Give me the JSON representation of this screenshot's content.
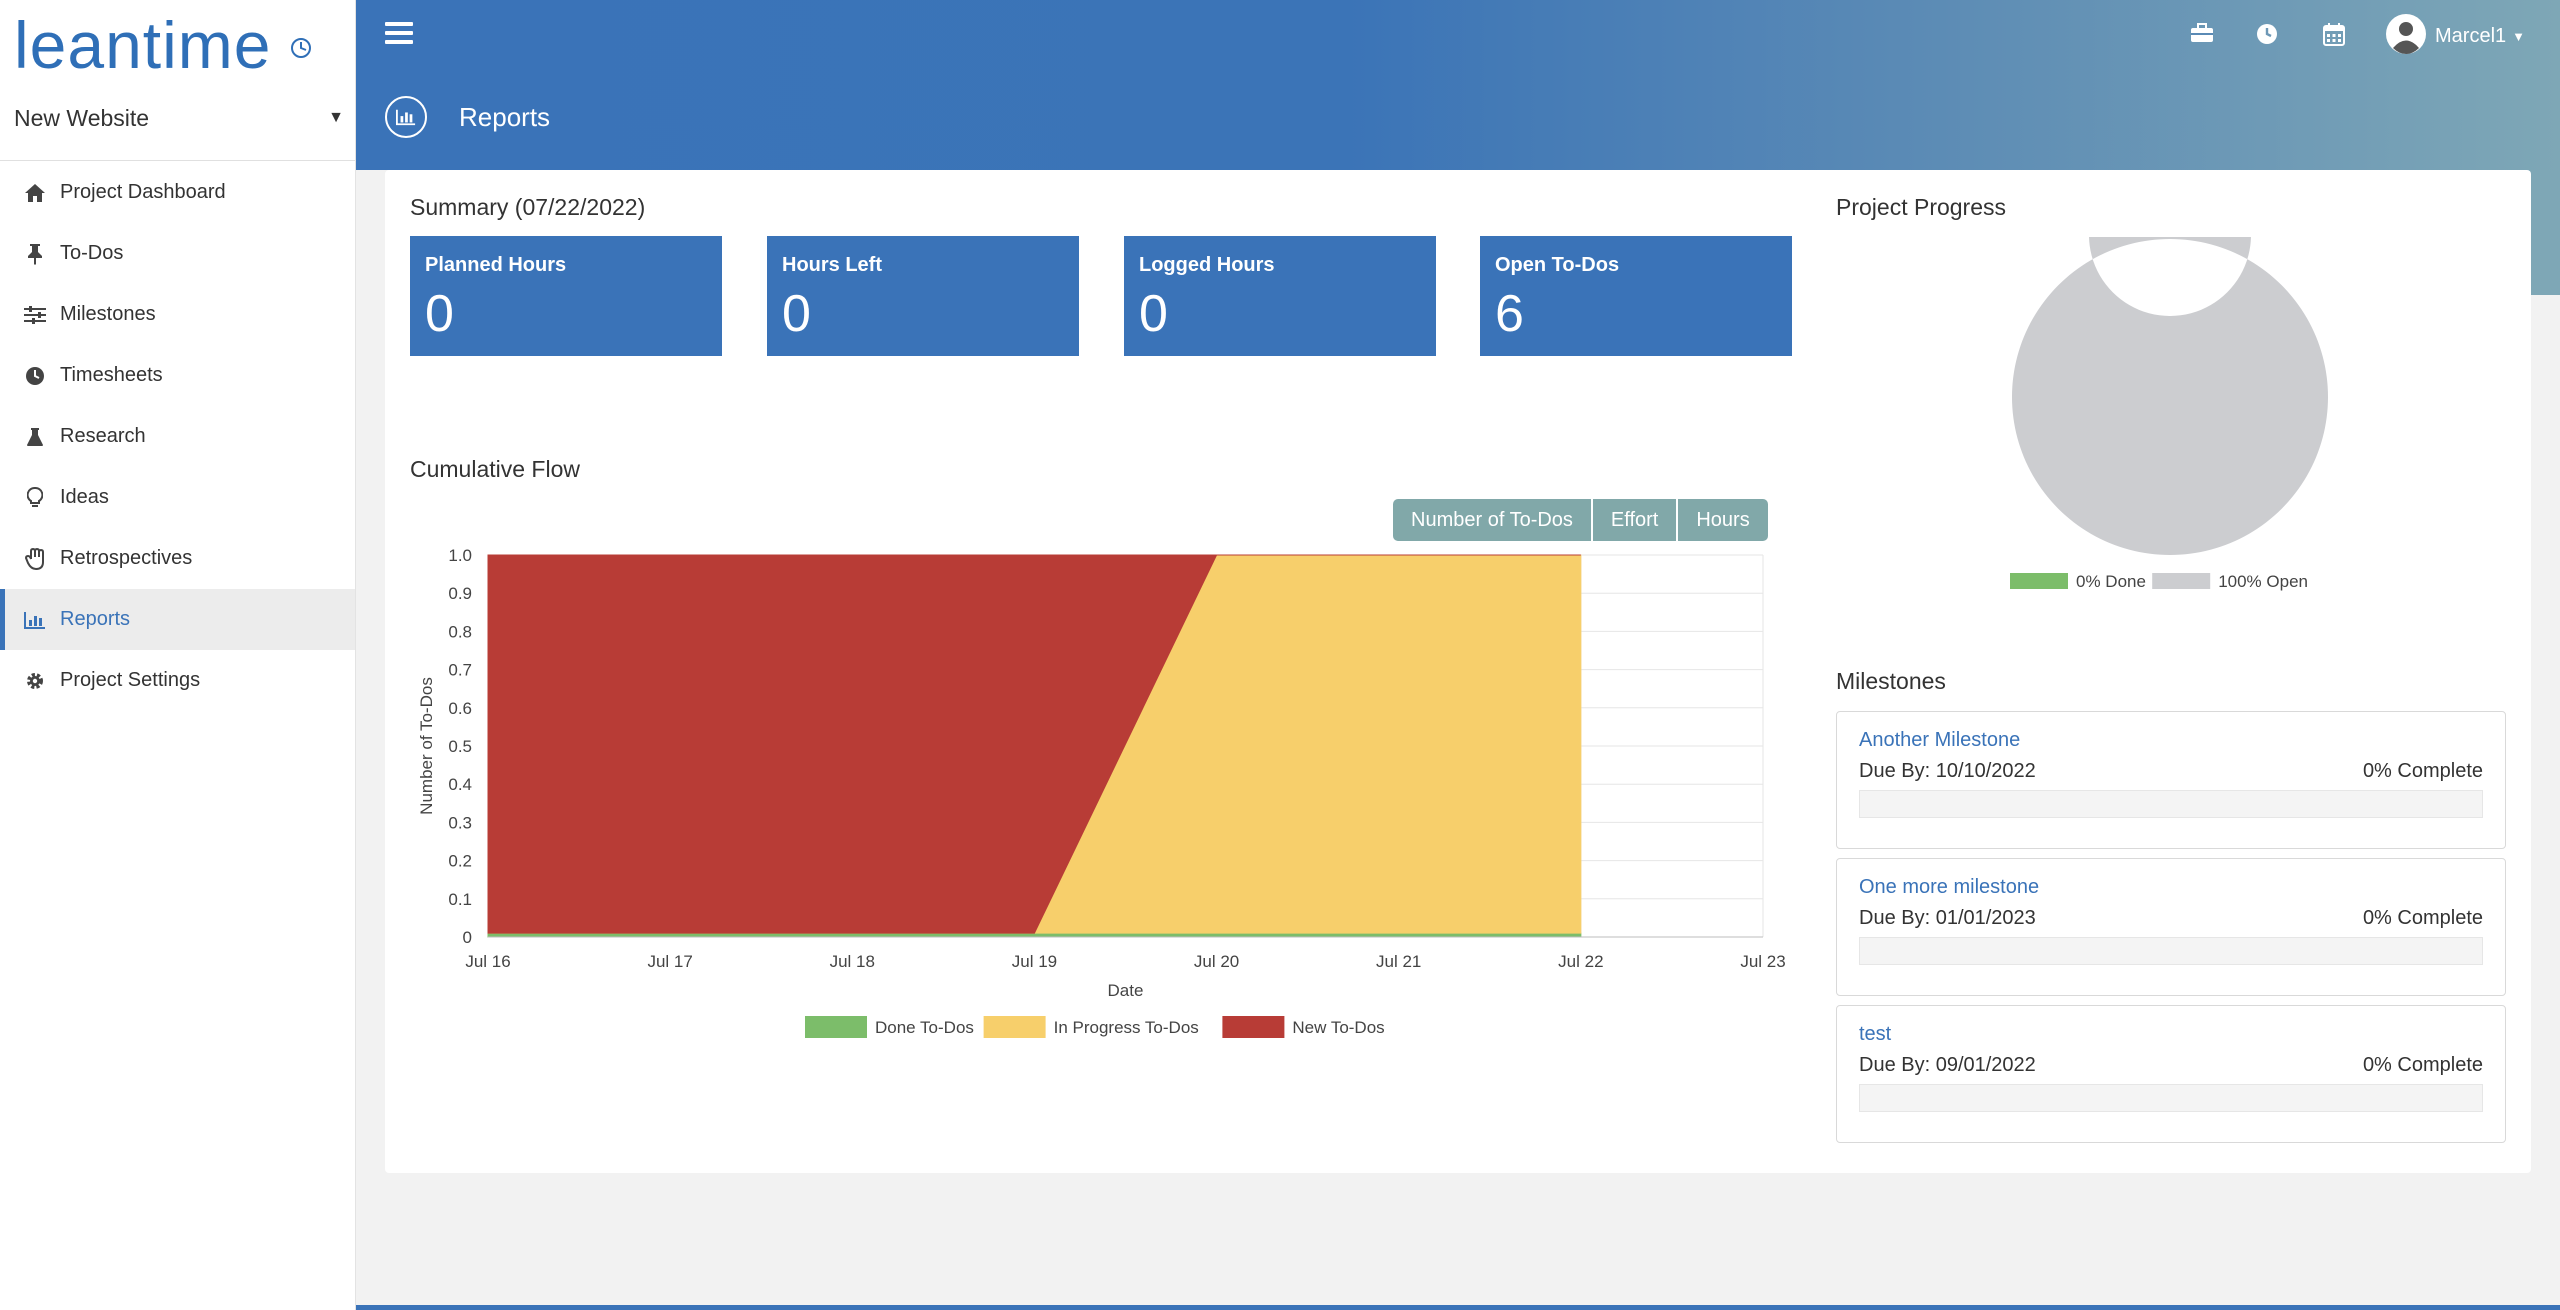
{
  "app": {
    "logo_text": "leantime",
    "project_name": "New Website",
    "user_name": "Marcel1"
  },
  "sidebar": {
    "items": [
      {
        "label": "Project Dashboard",
        "icon": "home-icon",
        "active": false
      },
      {
        "label": "To-Dos",
        "icon": "thumbtack-icon",
        "active": false
      },
      {
        "label": "Milestones",
        "icon": "sliders-icon",
        "active": false
      },
      {
        "label": "Timesheets",
        "icon": "clock-icon",
        "active": false
      },
      {
        "label": "Research",
        "icon": "flask-icon",
        "active": false
      },
      {
        "label": "Ideas",
        "icon": "lightbulb-icon",
        "active": false
      },
      {
        "label": "Retrospectives",
        "icon": "hand-icon",
        "active": false
      },
      {
        "label": "Reports",
        "icon": "bar-chart-icon",
        "active": true
      },
      {
        "label": "Project Settings",
        "icon": "gear-icon",
        "active": false
      }
    ]
  },
  "header": {
    "page_title": "Reports",
    "icons": [
      "briefcase-icon",
      "clock-icon",
      "calendar-icon"
    ]
  },
  "summary": {
    "title": "Summary (07/22/2022)",
    "stats": [
      {
        "label": "Planned Hours",
        "value": "0"
      },
      {
        "label": "Hours Left",
        "value": "0"
      },
      {
        "label": "Logged Hours",
        "value": "0"
      },
      {
        "label": "Open To-Dos",
        "value": "6"
      }
    ]
  },
  "flow": {
    "title": "Cumulative Flow",
    "toggles": [
      "Number of To-Dos",
      "Effort",
      "Hours"
    ]
  },
  "chart_data": [
    {
      "type": "area",
      "title": "",
      "xlabel": "Date",
      "ylabel": "Number of To-Dos",
      "x": [
        "Jul 16",
        "Jul 17",
        "Jul 18",
        "Jul 19",
        "Jul 20",
        "Jul 21",
        "Jul 22",
        "Jul 23"
      ],
      "ylim": [
        0,
        1.0
      ],
      "yticks": [
        "0",
        "0.1",
        "0.2",
        "0.3",
        "0.4",
        "0.5",
        "0.6",
        "0.7",
        "0.8",
        "0.9",
        "1.0"
      ],
      "stacked": true,
      "grid": true,
      "legend": "bottom",
      "series": [
        {
          "name": "Done To-Dos",
          "color": "#7cbd6a",
          "values": [
            0.01,
            0.01,
            0.01,
            0.01,
            0.01,
            0.01,
            0.01,
            null
          ]
        },
        {
          "name": "In Progress To-Dos",
          "color": "#f7cf6b",
          "values": [
            0,
            0,
            0,
            0,
            0.99,
            0.99,
            0.99,
            null
          ]
        },
        {
          "name": "New To-Dos",
          "color": "#b83c36",
          "values": [
            0.99,
            0.99,
            0.99,
            0.99,
            0,
            0,
            0,
            null
          ]
        }
      ]
    },
    {
      "type": "pie",
      "title": "Project Progress",
      "labels": [
        "0% Done",
        "100% Open"
      ],
      "values": [
        0,
        100
      ],
      "colors": [
        "#7cbd6a",
        "#cccdd0"
      ],
      "legend": "bottom"
    }
  ],
  "progress": {
    "title": "Project Progress"
  },
  "milestones": {
    "title": "Milestones",
    "items": [
      {
        "name": "Another Milestone",
        "due": "Due By: 10/10/2022",
        "complete": "0% Complete",
        "progress": 0
      },
      {
        "name": "One more milestone",
        "due": "Due By: 01/01/2023",
        "complete": "0% Complete",
        "progress": 0
      },
      {
        "name": "test",
        "due": "Due By: 09/01/2022",
        "complete": "0% Complete",
        "progress": 0
      }
    ]
  }
}
